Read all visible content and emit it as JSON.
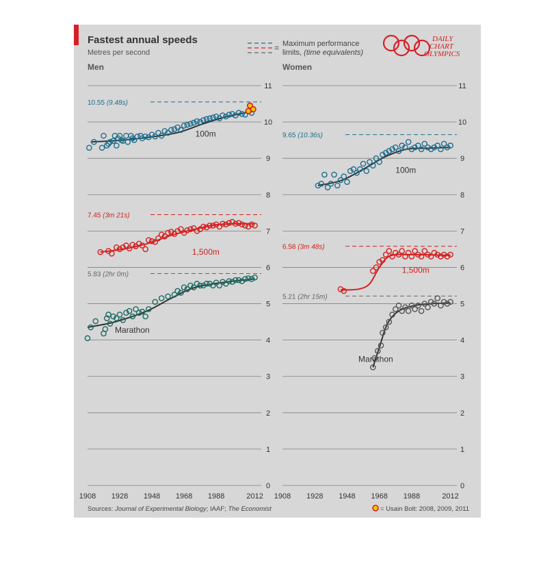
{
  "header": {
    "title": "Fastest annual speeds",
    "subtitle": "Metres per second",
    "legend_label_line1": "Maximum performance",
    "legend_label_line2a": "limits, ",
    "legend_label_line2b": "(time equivalents)",
    "legend_equals": "=",
    "brand_line1": "DAILY",
    "brand_line2": "CHART",
    "brand_line3": "OLYMPICS"
  },
  "footer": {
    "sources_prefix": "Sources: ",
    "sources_italic1": "Journal of Experimental Biology",
    "sources_mid": "; IAAF; ",
    "sources_italic2": "The Economist",
    "bolt_note": "= Usain Bolt: 2008, 2009, 2011"
  },
  "colors": {
    "background": "#d7d7d7",
    "gridline": "#7f7f7f",
    "series_100m": "#1d6e8f",
    "series_1500m": "#d51f1f",
    "series_marathon": "#1a6b62",
    "series_women_marathon": "#555555",
    "brand_red": "#d61f26"
  },
  "chart_data": [
    {
      "type": "scatter",
      "title": "Men",
      "ylim": [
        0,
        11
      ],
      "yticks": [
        "0",
        "1",
        "2",
        "3",
        "4",
        "5",
        "6",
        "7",
        "8",
        "9",
        "10",
        "11"
      ],
      "xticks": [
        "1908",
        "1928",
        "1948",
        "1968",
        "1988",
        "2012"
      ],
      "grid": true,
      "limits": [
        {
          "value": 10.55,
          "label": "10.55",
          "time": "(9.48s)",
          "event": "100m"
        },
        {
          "value": 7.45,
          "label": "7.45",
          "time": "(3m 21s)",
          "event": "1,500m"
        },
        {
          "value": 5.83,
          "label": "5.83",
          "time": "(2hr 0m)",
          "event": "Marathon"
        }
      ],
      "series": [
        {
          "name": "100m",
          "label_x": 1975,
          "label_y": 9.6,
          "x": [
            1909,
            1912,
            1917,
            1918,
            1920,
            1921,
            1922,
            1924,
            1925,
            1926,
            1927,
            1928,
            1929,
            1930,
            1932,
            1933,
            1935,
            1936,
            1937,
            1939,
            1941,
            1942,
            1944,
            1946,
            1948,
            1950,
            1952,
            1954,
            1956,
            1958,
            1960,
            1962,
            1964,
            1966,
            1968,
            1970,
            1972,
            1974,
            1976,
            1978,
            1980,
            1982,
            1984,
            1986,
            1988,
            1990,
            1992,
            1994,
            1996,
            1998,
            2000,
            2002,
            2004,
            2006,
            2010
          ],
          "y": [
            9.29,
            9.45,
            9.29,
            9.62,
            9.35,
            9.4,
            9.45,
            9.48,
            9.62,
            9.35,
            9.55,
            9.62,
            9.5,
            9.48,
            9.62,
            9.45,
            9.62,
            9.55,
            9.5,
            9.6,
            9.62,
            9.55,
            9.6,
            9.58,
            9.65,
            9.6,
            9.7,
            9.62,
            9.75,
            9.7,
            9.78,
            9.8,
            9.85,
            9.78,
            9.9,
            9.92,
            9.95,
            9.98,
            10.02,
            10.0,
            10.05,
            10.08,
            10.1,
            10.12,
            10.15,
            10.1,
            10.18,
            10.15,
            10.2,
            10.22,
            10.18,
            10.25,
            10.22,
            10.2,
            10.25
          ],
          "trend_x": [
            1910,
            1930,
            1950,
            1965,
            1980,
            1995,
            2012
          ],
          "trend_y": [
            9.45,
            9.5,
            9.6,
            9.72,
            9.95,
            10.15,
            10.3
          ]
        },
        {
          "name": "1,500m",
          "label_x": 1973,
          "label_y": 6.35,
          "x": [
            1916,
            1921,
            1923,
            1926,
            1928,
            1930,
            1932,
            1934,
            1936,
            1938,
            1940,
            1942,
            1944,
            1946,
            1948,
            1950,
            1952,
            1954,
            1956,
            1958,
            1960,
            1962,
            1964,
            1966,
            1968,
            1970,
            1972,
            1974,
            1976,
            1978,
            1980,
            1982,
            1984,
            1986,
            1988,
            1990,
            1992,
            1994,
            1996,
            1998,
            2000,
            2002,
            2004,
            2006,
            2008,
            2010,
            2012
          ],
          "y": [
            6.42,
            6.45,
            6.38,
            6.55,
            6.5,
            6.55,
            6.6,
            6.52,
            6.62,
            6.58,
            6.65,
            6.6,
            6.5,
            6.75,
            6.72,
            6.7,
            6.8,
            6.9,
            6.85,
            6.95,
            6.98,
            6.92,
            7.0,
            7.05,
            6.95,
            7.02,
            7.05,
            7.08,
            7.0,
            7.05,
            7.12,
            7.1,
            7.15,
            7.15,
            7.18,
            7.12,
            7.2,
            7.18,
            7.22,
            7.25,
            7.2,
            7.22,
            7.18,
            7.15,
            7.12,
            7.18,
            7.15
          ],
          "trend_x": [
            1916,
            1930,
            1945,
            1960,
            1975,
            1990,
            2012
          ],
          "trend_y": [
            6.42,
            6.5,
            6.65,
            6.88,
            7.05,
            7.18,
            7.2
          ]
        },
        {
          "name": "Marathon",
          "label_x": 1925,
          "label_y": 4.2,
          "x": [
            1908,
            1910,
            1913,
            1918,
            1919,
            1920,
            1921,
            1922,
            1924,
            1926,
            1928,
            1930,
            1932,
            1934,
            1936,
            1938,
            1940,
            1942,
            1944,
            1946,
            1950,
            1954,
            1958,
            1962,
            1964,
            1966,
            1968,
            1970,
            1972,
            1974,
            1976,
            1978,
            1980,
            1982,
            1984,
            1986,
            1988,
            1990,
            1992,
            1994,
            1996,
            1998,
            2000,
            2002,
            2004,
            2006,
            2008,
            2010,
            2012
          ],
          "y": [
            4.05,
            4.35,
            4.52,
            4.18,
            4.3,
            4.6,
            4.7,
            4.45,
            4.65,
            4.6,
            4.7,
            4.55,
            4.75,
            4.8,
            4.65,
            4.85,
            4.75,
            4.78,
            4.65,
            4.85,
            5.05,
            5.15,
            5.2,
            5.25,
            5.35,
            5.3,
            5.45,
            5.4,
            5.5,
            5.45,
            5.55,
            5.5,
            5.5,
            5.55,
            5.55,
            5.5,
            5.58,
            5.5,
            5.6,
            5.55,
            5.62,
            5.6,
            5.65,
            5.65,
            5.62,
            5.68,
            5.7,
            5.68,
            5.72
          ],
          "trend_x": [
            1908,
            1925,
            1945,
            1960,
            1975,
            1995,
            2012
          ],
          "trend_y": [
            4.35,
            4.5,
            4.8,
            5.15,
            5.45,
            5.6,
            5.68
          ]
        }
      ],
      "highlight": {
        "name": "Usain Bolt",
        "x": [
          2008,
          2009,
          2011
        ],
        "y": [
          10.3,
          10.45,
          10.35
        ]
      }
    },
    {
      "type": "scatter",
      "title": "Women",
      "ylim": [
        0,
        11
      ],
      "yticks": [
        "0",
        "1",
        "2",
        "3",
        "4",
        "5",
        "6",
        "7",
        "8",
        "9",
        "10",
        "11"
      ],
      "xticks": [
        "1908",
        "1928",
        "1948",
        "1968",
        "1988",
        "2012"
      ],
      "grid": true,
      "limits": [
        {
          "value": 9.65,
          "label": "9.65",
          "time": "(10.36s)",
          "event": "100m"
        },
        {
          "value": 6.58,
          "label": "6.58",
          "time": "(3m 48s)",
          "event": "1,500m"
        },
        {
          "value": 5.21,
          "label": "5.21",
          "time": "(2hr 15m)",
          "event": "Marathon"
        }
      ],
      "series": [
        {
          "name": "100m",
          "label_x": 1978,
          "label_y": 8.6,
          "x": [
            1930,
            1932,
            1934,
            1936,
            1938,
            1940,
            1942,
            1944,
            1946,
            1948,
            1950,
            1952,
            1954,
            1956,
            1958,
            1960,
            1962,
            1964,
            1966,
            1968,
            1970,
            1972,
            1974,
            1976,
            1978,
            1980,
            1982,
            1984,
            1986,
            1988,
            1990,
            1992,
            1994,
            1996,
            1998,
            2000,
            2002,
            2004,
            2006,
            2008,
            2010,
            2012
          ],
          "y": [
            8.25,
            8.3,
            8.55,
            8.2,
            8.3,
            8.55,
            8.25,
            8.4,
            8.5,
            8.35,
            8.65,
            8.7,
            8.6,
            8.7,
            8.85,
            8.65,
            8.9,
            8.8,
            9.0,
            8.9,
            9.1,
            9.15,
            9.2,
            9.25,
            9.3,
            9.2,
            9.35,
            9.3,
            9.45,
            9.25,
            9.3,
            9.35,
            9.25,
            9.4,
            9.3,
            9.25,
            9.3,
            9.35,
            9.25,
            9.4,
            9.3,
            9.35
          ],
          "trend_x": [
            1930,
            1945,
            1960,
            1972,
            1985,
            2000,
            2012
          ],
          "trend_y": [
            8.25,
            8.4,
            8.75,
            9.05,
            9.25,
            9.28,
            9.3
          ]
        },
        {
          "name": "1,500m",
          "label_x": 1982,
          "label_y": 5.85,
          "x": [
            1944,
            1946,
            1964,
            1966,
            1968,
            1970,
            1972,
            1974,
            1976,
            1978,
            1980,
            1982,
            1984,
            1986,
            1988,
            1990,
            1992,
            1994,
            1996,
            1998,
            2000,
            2002,
            2004,
            2006,
            2008,
            2010,
            2012
          ],
          "y": [
            5.4,
            5.35,
            5.9,
            6.0,
            6.15,
            6.2,
            6.35,
            6.45,
            6.3,
            6.4,
            6.35,
            6.45,
            6.3,
            6.4,
            6.3,
            6.45,
            6.35,
            6.3,
            6.45,
            6.35,
            6.3,
            6.4,
            6.35,
            6.3,
            6.35,
            6.3,
            6.35
          ],
          "trend_x": [
            1944,
            1955,
            1962,
            1968,
            1975,
            1990,
            2012
          ],
          "trend_y": [
            5.38,
            5.4,
            5.55,
            6.0,
            6.32,
            6.35,
            6.33
          ],
          "trend_start": 0
        },
        {
          "name": "Marathon",
          "label_x": 1955,
          "label_y": 3.4,
          "x": [
            1964,
            1965,
            1967,
            1969,
            1970,
            1972,
            1974,
            1976,
            1978,
            1980,
            1982,
            1984,
            1986,
            1988,
            1990,
            1992,
            1994,
            1996,
            1998,
            2000,
            2002,
            2004,
            2006,
            2008,
            2010,
            2012
          ],
          "y": [
            3.25,
            3.5,
            3.7,
            3.85,
            4.2,
            4.35,
            4.5,
            4.7,
            4.85,
            4.95,
            4.8,
            4.9,
            4.8,
            4.95,
            4.85,
            4.95,
            4.8,
            5.0,
            4.9,
            5.05,
            5.0,
            5.15,
            4.95,
            5.05,
            5.0,
            5.05
          ],
          "trend_x": [
            1964,
            1968,
            1973,
            1980,
            1990,
            2000,
            2012
          ],
          "trend_y": [
            3.25,
            3.8,
            4.45,
            4.8,
            4.95,
            5.0,
            5.02
          ]
        }
      ]
    }
  ]
}
